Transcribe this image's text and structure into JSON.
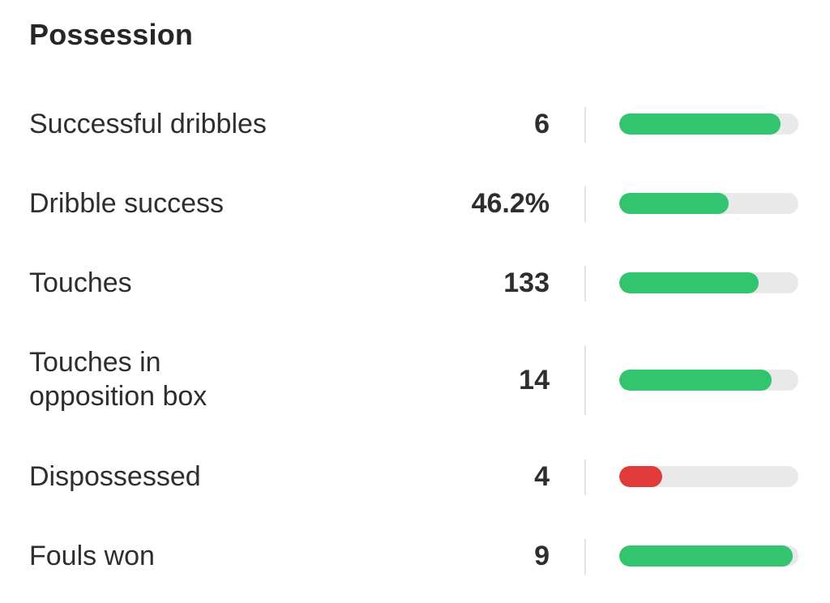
{
  "section": {
    "title": "Possession"
  },
  "colors": {
    "good": "#33c46f",
    "bad": "#e03a3a",
    "track": "#e9e9e9"
  },
  "stats": [
    {
      "label": "Successful dribbles",
      "value": "6",
      "bar_fraction": 0.9,
      "status": "good"
    },
    {
      "label": "Dribble success",
      "value": "46.2%",
      "bar_fraction": 0.61,
      "status": "good"
    },
    {
      "label": "Touches",
      "value": "133",
      "bar_fraction": 0.78,
      "status": "good"
    },
    {
      "label": "Touches in opposition box",
      "value": "14",
      "bar_fraction": 0.85,
      "status": "good"
    },
    {
      "label": "Dispossessed",
      "value": "4",
      "bar_fraction": 0.24,
      "status": "bad"
    },
    {
      "label": "Fouls won",
      "value": "9",
      "bar_fraction": 0.97,
      "status": "good"
    }
  ]
}
